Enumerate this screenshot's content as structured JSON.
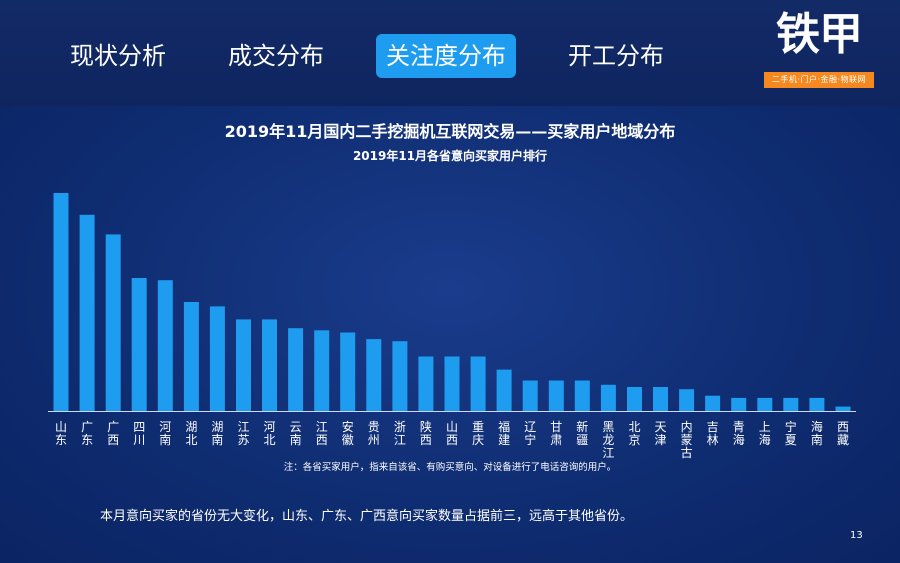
{
  "tabs": [
    {
      "label": "现状分析",
      "active": false
    },
    {
      "label": "成交分布",
      "active": false
    },
    {
      "label": "关注度分布",
      "active": true
    },
    {
      "label": "开工分布",
      "active": false
    }
  ],
  "logo": {
    "name": "铁甲",
    "tagline": "二手机·门户·金融·物联网"
  },
  "colors": {
    "background": "#0d2a6b",
    "bar": "#1e9cf0",
    "active_tab": "#1e9cf0",
    "logo_accent": "#f5891f"
  },
  "chart_data": {
    "type": "bar",
    "title": "2019年11月国内二手挖掘机互联网交易——买家用户地域分布",
    "subtitle": "2019年11月各省意向买家用户排行",
    "categories": [
      "山东",
      "广东",
      "广西",
      "四川",
      "河南",
      "湖北",
      "湖南",
      "江苏",
      "河北",
      "云南",
      "江西",
      "安徽",
      "贵州",
      "浙江",
      "陕西",
      "山西",
      "重庆",
      "福建",
      "辽宁",
      "甘肃",
      "新疆",
      "黑龙江",
      "北京",
      "天津",
      "内蒙古",
      "吉林",
      "青海",
      "上海",
      "宁夏",
      "海南",
      "西藏"
    ],
    "values": [
      100,
      90,
      81,
      61,
      60,
      50,
      48,
      42,
      42,
      38,
      37,
      36,
      33,
      32,
      25,
      25,
      25,
      19,
      14,
      14,
      14,
      12,
      11,
      11,
      10,
      7,
      6,
      6,
      6,
      6,
      2
    ],
    "ylim": [
      0,
      100
    ],
    "grid": false,
    "legend": "none",
    "xlabel": "",
    "ylabel": ""
  },
  "note": "注：各省买家用户，指来自该省、有购买意向、对设备进行了电话咨询的用户。",
  "summary": "本月意向买家的省份无大变化，山东、广东、广西意向买家数量占据前三，远高于其他省份。",
  "page_number": "13"
}
